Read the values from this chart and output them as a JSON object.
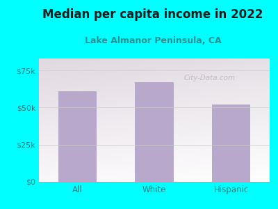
{
  "title": "Median per capita income in 2022",
  "subtitle": "Lake Almanor Peninsula, CA",
  "categories": [
    "All",
    "White",
    "Hispanic"
  ],
  "values": [
    61000,
    67000,
    52000
  ],
  "bar_color": "#b8a8cc",
  "title_fontsize": 12,
  "subtitle_fontsize": 9,
  "title_color": "#1a1a1a",
  "subtitle_color": "#2a9090",
  "tick_label_color": "#2a7a7a",
  "ytick_labels": [
    "$0",
    "$25k",
    "$50k",
    "$75k"
  ],
  "ytick_values": [
    0,
    25000,
    50000,
    75000
  ],
  "ylim": [
    0,
    83000
  ],
  "background_outer": "#00ffff",
  "watermark": "City-Data.com"
}
